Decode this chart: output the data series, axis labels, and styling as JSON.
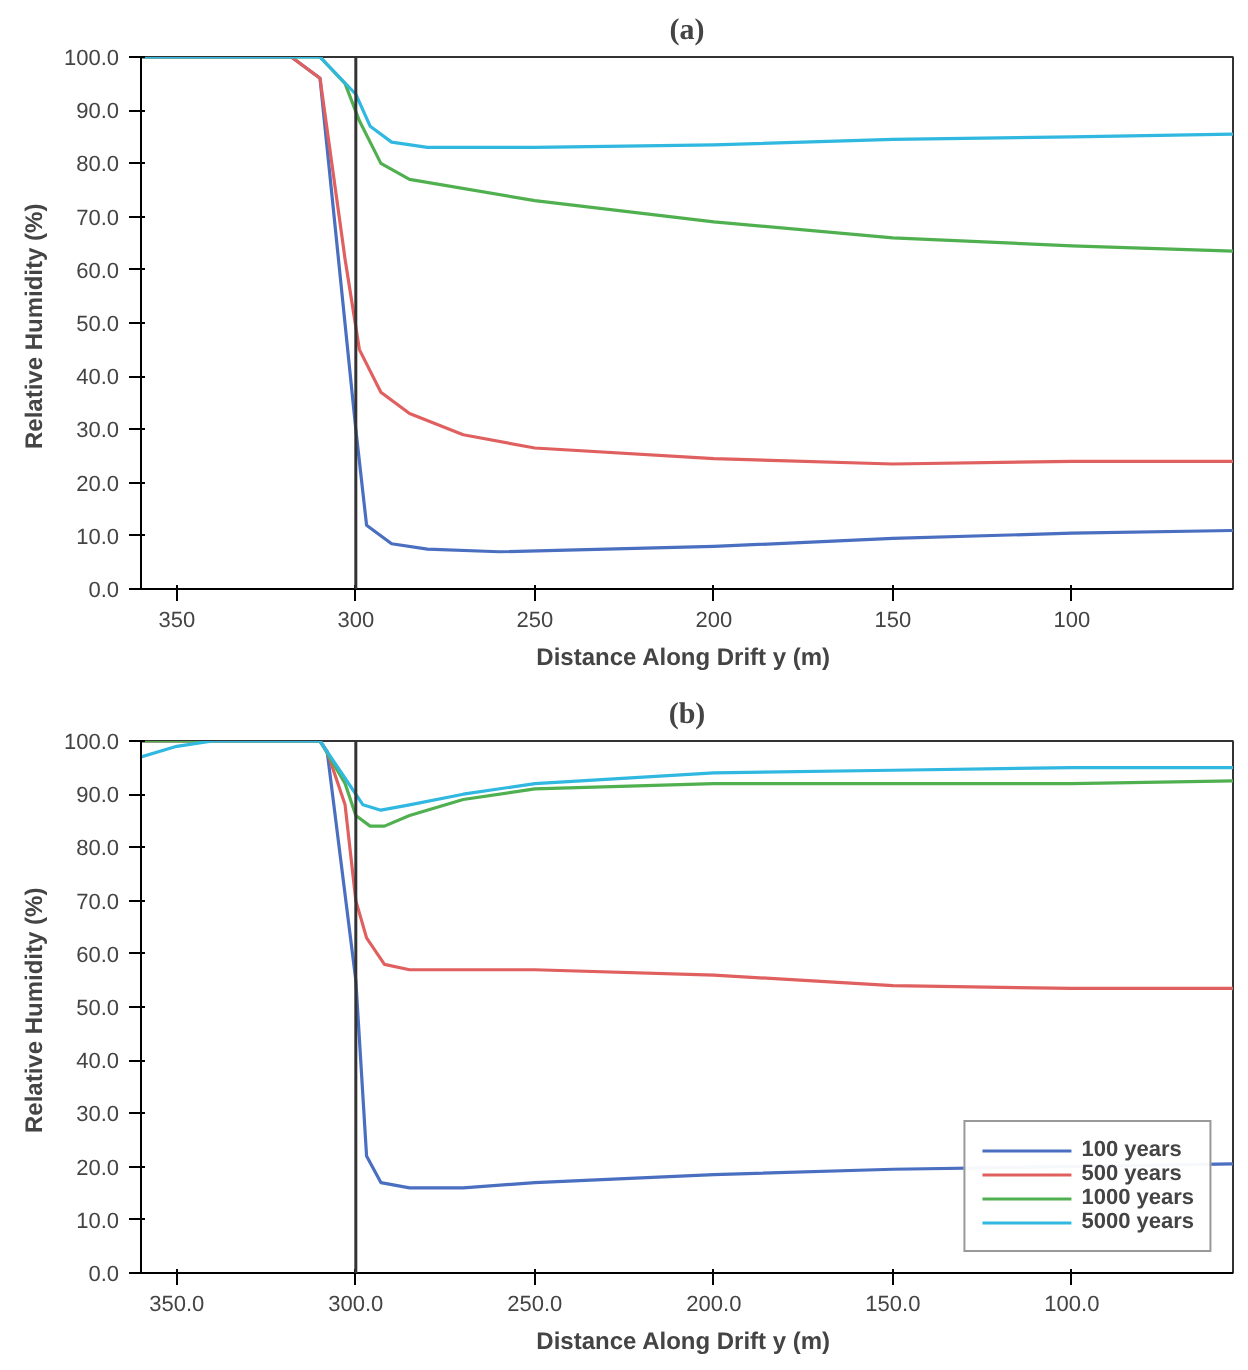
{
  "chart_data": [
    {
      "type": "line",
      "title": "(a)",
      "xlabel": "Distance Along Drift y  (m)",
      "ylabel": "Relative Humidity  (%)",
      "xlim": [
        360,
        55
      ],
      "ylim": [
        0,
        100
      ],
      "xticks": [
        350,
        300,
        250,
        200,
        150,
        100
      ],
      "yticks": [
        {
          "value": 0,
          "label": "0.0"
        },
        {
          "value": 10,
          "label": "10.0"
        },
        {
          "value": 20,
          "label": "20.0"
        },
        {
          "value": 30,
          "label": "30.0"
        },
        {
          "value": 40,
          "label": "40.0"
        },
        {
          "value": 50,
          "label": "50.0"
        },
        {
          "value": 60,
          "label": "60.0"
        },
        {
          "value": 70,
          "label": "70.0"
        },
        {
          "value": 80,
          "label": "80.0"
        },
        {
          "value": 90,
          "label": "90.0"
        },
        {
          "value": 100,
          "label": "100.0"
        }
      ],
      "grid": false,
      "legend": false,
      "ref_lines": [
        {
          "axis": "x",
          "value": 300,
          "color": "#333333"
        }
      ],
      "series": [
        {
          "color": "#4a6fc0",
          "x": [
            360,
            318,
            310,
            300,
            297,
            290,
            280,
            260,
            200,
            150,
            100,
            55
          ],
          "values": [
            100,
            100,
            96,
            30,
            12,
            8.5,
            7.5,
            7,
            8,
            9.5,
            10.5,
            11
          ]
        },
        {
          "color": "#e06060",
          "x": [
            360,
            318,
            310,
            303,
            299,
            293,
            285,
            270,
            250,
            200,
            150,
            100,
            55
          ],
          "values": [
            100,
            100,
            96,
            62,
            45,
            37,
            33,
            29,
            26.5,
            24.5,
            23.5,
            24,
            24
          ]
        },
        {
          "color": "#50b050",
          "x": [
            360,
            310,
            303,
            299,
            293,
            285,
            250,
            200,
            150,
            100,
            55
          ],
          "values": [
            100,
            100,
            95,
            88,
            80,
            77,
            73,
            69,
            66,
            64.5,
            63.5
          ]
        },
        {
          "color": "#30b8e0",
          "x": [
            360,
            310,
            300,
            296,
            290,
            280,
            250,
            200,
            150,
            100,
            55
          ],
          "values": [
            100,
            100,
            93,
            87,
            84,
            83,
            83,
            83.5,
            84.5,
            85,
            85.5
          ]
        }
      ]
    },
    {
      "type": "line",
      "title": "(b)",
      "xlabel": "Distance Along Drift y  (m)",
      "ylabel": "Relative Humidity  (%)",
      "xlim": [
        360,
        55
      ],
      "ylim": [
        0,
        100
      ],
      "xticks": [
        {
          "value": 350,
          "label": "350.0"
        },
        {
          "value": 300,
          "label": "300.0"
        },
        {
          "value": 250,
          "label": "250.0"
        },
        {
          "value": 200,
          "label": "200.0"
        },
        {
          "value": 150,
          "label": "150.0"
        },
        {
          "value": 100,
          "label": "100.0"
        }
      ],
      "yticks": [
        {
          "value": 0,
          "label": "0.0"
        },
        {
          "value": 10,
          "label": "10.0"
        },
        {
          "value": 20,
          "label": "20.0"
        },
        {
          "value": 30,
          "label": "30.0"
        },
        {
          "value": 40,
          "label": "40.0"
        },
        {
          "value": 50,
          "label": "50.0"
        },
        {
          "value": 60,
          "label": "60.0"
        },
        {
          "value": 70,
          "label": "70.0"
        },
        {
          "value": 80,
          "label": "80.0"
        },
        {
          "value": 90,
          "label": "90.0"
        },
        {
          "value": 100,
          "label": "100.0"
        }
      ],
      "grid": false,
      "legend": "bottom right",
      "ref_lines": [
        {
          "axis": "x",
          "value": 300,
          "color": "#333333"
        }
      ],
      "series": [
        {
          "name": "100 years",
          "color": "#4a6fc0",
          "x": [
            360,
            310,
            308,
            300,
            297,
            293,
            285,
            270,
            250,
            200,
            150,
            55
          ],
          "values": [
            100,
            100,
            98,
            55,
            22,
            17,
            16,
            16,
            17,
            18.5,
            19.5,
            20.5
          ]
        },
        {
          "name": "500 years",
          "color": "#e06060",
          "x": [
            360,
            310,
            308,
            303,
            300,
            297,
            292,
            285,
            250,
            200,
            150,
            100,
            55
          ],
          "values": [
            100,
            100,
            98,
            88,
            70,
            63,
            58,
            57,
            57,
            56,
            54,
            53.5,
            53.5
          ]
        },
        {
          "name": "1000 years",
          "color": "#50b050",
          "x": [
            360,
            310,
            303,
            300,
            296,
            292,
            285,
            270,
            250,
            200,
            150,
            100,
            55
          ],
          "values": [
            100,
            100,
            92,
            86,
            84,
            84,
            86,
            89,
            91,
            92,
            92,
            92,
            92.5
          ]
        },
        {
          "name": "5000 years",
          "color": "#30b8e0",
          "x": [
            360,
            350,
            340,
            310,
            303,
            298,
            293,
            285,
            270,
            250,
            200,
            150,
            100,
            55
          ],
          "values": [
            97,
            99,
            100,
            100,
            93,
            88,
            87,
            88,
            90,
            92,
            94,
            94.5,
            95,
            95
          ]
        }
      ]
    }
  ]
}
